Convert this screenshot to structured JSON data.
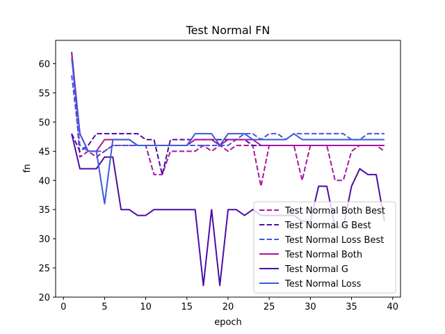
{
  "chart_data": {
    "type": "line",
    "title": "Test Normal FN",
    "xlabel": "epoch",
    "ylabel": "fn",
    "xlim": [
      -0.95,
      40.95
    ],
    "ylim": [
      20,
      64
    ],
    "xticks": [
      0,
      5,
      10,
      15,
      20,
      25,
      30,
      35,
      40
    ],
    "yticks": [
      20,
      25,
      30,
      35,
      40,
      45,
      50,
      55,
      60
    ],
    "grid": false,
    "legend_position": "lower-right",
    "x": [
      1,
      2,
      3,
      4,
      5,
      6,
      7,
      8,
      9,
      10,
      11,
      12,
      13,
      14,
      15,
      16,
      17,
      18,
      19,
      20,
      21,
      22,
      23,
      24,
      25,
      26,
      27,
      28,
      29,
      30,
      31,
      32,
      33,
      34,
      35,
      36,
      37,
      38,
      39
    ],
    "series": [
      {
        "name": "Test Normal Both Best",
        "color": "#a9169b",
        "dash": "dashed",
        "values": [
          62,
          44,
          45,
          44,
          45,
          46,
          46,
          46,
          46,
          46,
          41,
          41,
          45,
          45,
          45,
          45,
          46,
          45,
          46,
          45,
          46,
          46,
          46,
          39,
          46,
          46,
          46,
          46,
          40,
          46,
          46,
          46,
          40,
          40,
          45,
          46,
          46,
          46,
          45
        ]
      },
      {
        "name": "Test Normal G Best",
        "color": "#4b0ca4",
        "dash": "dashed",
        "values": [
          48,
          45,
          46,
          48,
          48,
          48,
          48,
          48,
          48,
          47,
          47,
          41,
          47,
          47,
          47,
          47,
          47,
          47,
          47,
          47,
          47,
          47,
          46,
          46,
          46,
          46,
          46,
          46,
          46,
          46,
          46,
          46,
          46,
          46,
          46,
          46,
          46,
          46,
          46
        ]
      },
      {
        "name": "Test Normal Loss Best",
        "color": "#3d59dd",
        "dash": "dashed",
        "values": [
          58,
          46,
          45,
          45,
          45,
          46,
          46,
          46,
          46,
          46,
          46,
          46,
          46,
          46,
          46,
          46,
          46,
          46,
          46,
          46,
          47,
          48,
          48,
          47,
          48,
          48,
          47,
          48,
          48,
          48,
          48,
          48,
          48,
          48,
          47,
          47,
          48,
          48,
          48
        ]
      },
      {
        "name": "Test Normal Both",
        "color": "#a9169b",
        "dash": "solid",
        "values": [
          62,
          48,
          45,
          45,
          47,
          47,
          47,
          47,
          46,
          46,
          46,
          46,
          46,
          46,
          46,
          47,
          47,
          47,
          46,
          47,
          47,
          47,
          47,
          46,
          46,
          46,
          46,
          46,
          46,
          46,
          46,
          46,
          46,
          46,
          46,
          46,
          46,
          46,
          46
        ]
      },
      {
        "name": "Test Normal G",
        "color": "#4b0ca4",
        "dash": "solid",
        "values": [
          48,
          42,
          42,
          42,
          44,
          44,
          35,
          35,
          34,
          34,
          35,
          35,
          35,
          35,
          35,
          35,
          22,
          35,
          22,
          35,
          35,
          34,
          35,
          34,
          34,
          34,
          34,
          34,
          33,
          33,
          39,
          39,
          32,
          32,
          39,
          42,
          41,
          41,
          33
        ]
      },
      {
        "name": "Test Normal Loss",
        "color": "#3d59dd",
        "dash": "solid",
        "values": [
          61,
          48,
          45,
          45,
          36,
          47,
          47,
          47,
          46,
          46,
          46,
          46,
          46,
          46,
          46,
          48,
          48,
          48,
          46,
          48,
          48,
          48,
          47,
          47,
          47,
          47,
          47,
          48,
          47,
          47,
          47,
          47,
          47,
          47,
          47,
          47,
          47,
          47,
          47
        ]
      }
    ]
  }
}
